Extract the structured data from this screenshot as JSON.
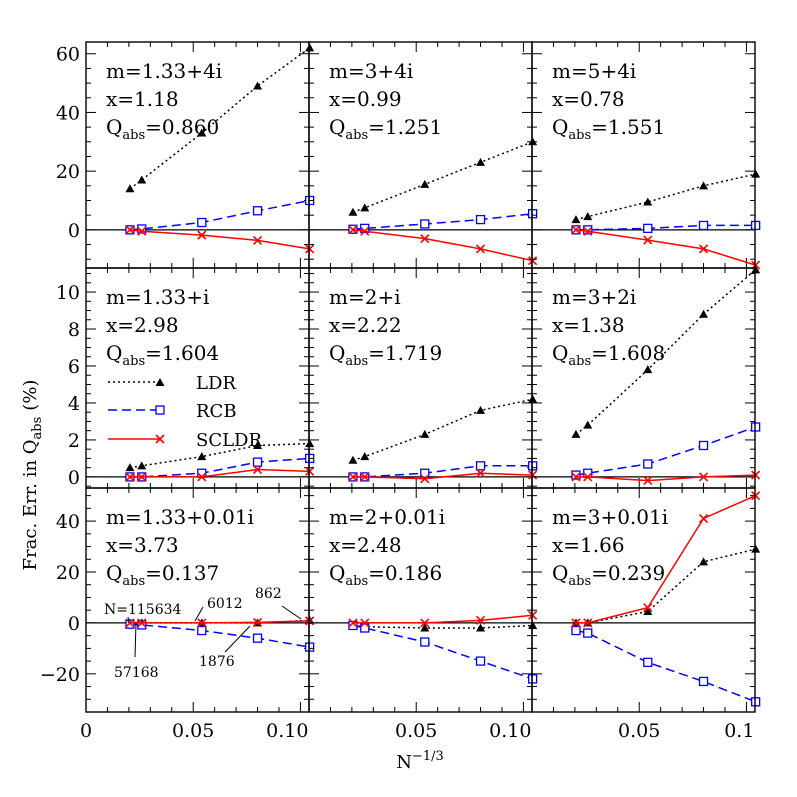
{
  "figure": {
    "ylabel": "Frac. Err. in Q",
    "ylabel_sub": "abs",
    "ylabel_unit": "(%)",
    "xlabel": "N",
    "xlabel_sup": "−1/3"
  },
  "legend": [
    {
      "label": "LDR",
      "color": "#000000"
    },
    {
      "label": "RCB",
      "color": "#0000ff"
    },
    {
      "label": "SCLDR",
      "color": "#ff0000"
    }
  ],
  "annotations": [
    {
      "text": "N=115634"
    },
    {
      "text": "57168"
    },
    {
      "text": "6012"
    },
    {
      "text": "1876"
    },
    {
      "text": "862"
    }
  ],
  "chart_data": [
    {
      "type": "line",
      "row": 0,
      "col": 0,
      "labels": [
        "m=1.33+4i",
        "x=1.18"
      ],
      "qabs_prefix": "Q",
      "qabs_sub": "abs",
      "qabs_value": "=0.860",
      "xlim": [
        0,
        0.104
      ],
      "ylim": [
        -13,
        64
      ],
      "xticks": [
        0,
        0.05,
        0.1
      ],
      "xticklabels": [],
      "yticks": [
        0,
        20,
        40,
        60
      ],
      "yticklabels": [
        "0",
        "20",
        "40",
        "60"
      ],
      "x": [
        0.0205,
        0.026,
        0.054,
        0.08,
        0.1043
      ],
      "series": [
        {
          "name": "LDR",
          "values": [
            14,
            17,
            33,
            49,
            62
          ]
        },
        {
          "name": "RCB",
          "values": [
            0,
            0.3,
            2.5,
            6.5,
            10
          ]
        },
        {
          "name": "SCLDR",
          "values": [
            0,
            -0.5,
            -1.8,
            -3.6,
            -6.5
          ]
        }
      ]
    },
    {
      "type": "line",
      "row": 0,
      "col": 1,
      "labels": [
        "m=3+4i",
        "x=0.99"
      ],
      "qabs_prefix": "Q",
      "qabs_sub": "abs",
      "qabs_value": "=1.251",
      "xlim": [
        0,
        0.104
      ],
      "ylim": [
        -13,
        64
      ],
      "xticks": [
        0,
        0.05,
        0.1
      ],
      "xticklabels": [],
      "yticks": [
        0,
        20,
        40,
        60
      ],
      "yticklabels": [],
      "x": [
        0.0205,
        0.026,
        0.054,
        0.08,
        0.1043
      ],
      "series": [
        {
          "name": "LDR",
          "values": [
            6,
            7.5,
            15.5,
            23,
            30
          ]
        },
        {
          "name": "RCB",
          "values": [
            0.2,
            0.5,
            2,
            3.5,
            5.5
          ]
        },
        {
          "name": "SCLDR",
          "values": [
            0,
            -0.5,
            -3,
            -6.5,
            -10.5
          ]
        }
      ]
    },
    {
      "type": "line",
      "row": 0,
      "col": 2,
      "labels": [
        "m=5+4i",
        "x=0.78"
      ],
      "qabs_prefix": "Q",
      "qabs_sub": "abs",
      "qabs_value": "=1.551",
      "xlim": [
        0,
        0.104
      ],
      "ylim": [
        -13,
        64
      ],
      "xticks": [
        0,
        0.05,
        0.1
      ],
      "xticklabels": [],
      "yticks": [
        0,
        20,
        40,
        60
      ],
      "yticklabels": [],
      "x": [
        0.0205,
        0.026,
        0.054,
        0.08,
        0.1043
      ],
      "series": [
        {
          "name": "LDR",
          "values": [
            3.5,
            4.5,
            9.5,
            15,
            19
          ]
        },
        {
          "name": "RCB",
          "values": [
            0,
            0,
            0.5,
            1.5,
            1.5
          ]
        },
        {
          "name": "SCLDR",
          "values": [
            0,
            -0.5,
            -3.5,
            -6.5,
            -12
          ]
        }
      ]
    },
    {
      "type": "line",
      "row": 1,
      "col": 0,
      "labels": [
        "m=1.33+i",
        "x=2.98"
      ],
      "qabs_prefix": "Q",
      "qabs_sub": "abs",
      "qabs_value": "=1.604",
      "xlim": [
        0,
        0.104
      ],
      "ylim": [
        -0.6,
        11.3
      ],
      "xticks": [
        0,
        0.05,
        0.1
      ],
      "xticklabels": [],
      "yticks": [
        0,
        2,
        4,
        6,
        8,
        10
      ],
      "yticklabels": [
        "0",
        "2",
        "4",
        "6",
        "8",
        "10"
      ],
      "x": [
        0.0205,
        0.026,
        0.054,
        0.08,
        0.1043
      ],
      "series": [
        {
          "name": "LDR",
          "values": [
            0.5,
            0.6,
            1.1,
            1.7,
            1.8
          ]
        },
        {
          "name": "RCB",
          "values": [
            0,
            0,
            0.2,
            0.8,
            1
          ]
        },
        {
          "name": "SCLDR",
          "values": [
            0,
            0,
            0,
            0.4,
            0.3
          ]
        }
      ]
    },
    {
      "type": "line",
      "row": 1,
      "col": 1,
      "labels": [
        "m=2+i",
        "x=2.22"
      ],
      "qabs_prefix": "Q",
      "qabs_sub": "abs",
      "qabs_value": "=1.719",
      "xlim": [
        0,
        0.104
      ],
      "ylim": [
        -0.6,
        11.3
      ],
      "xticks": [
        0,
        0.05,
        0.1
      ],
      "xticklabels": [],
      "yticks": [
        0,
        2,
        4,
        6,
        8,
        10
      ],
      "yticklabels": [],
      "x": [
        0.0205,
        0.026,
        0.054,
        0.08,
        0.1043
      ],
      "series": [
        {
          "name": "LDR",
          "values": [
            0.9,
            1.1,
            2.3,
            3.6,
            4.2
          ]
        },
        {
          "name": "RCB",
          "values": [
            0,
            0,
            0.2,
            0.6,
            0.6
          ]
        },
        {
          "name": "SCLDR",
          "values": [
            0,
            0,
            -0.1,
            0.2,
            0.1
          ]
        }
      ]
    },
    {
      "type": "line",
      "row": 1,
      "col": 2,
      "labels": [
        "m=3+2i",
        "x=1.38"
      ],
      "qabs_prefix": "Q",
      "qabs_sub": "abs",
      "qabs_value": "=1.608",
      "xlim": [
        0,
        0.104
      ],
      "ylim": [
        -0.6,
        11.3
      ],
      "xticks": [
        0,
        0.05,
        0.1
      ],
      "xticklabels": [],
      "yticks": [
        0,
        2,
        4,
        6,
        8,
        10
      ],
      "yticklabels": [],
      "x": [
        0.0205,
        0.026,
        0.054,
        0.08,
        0.1043
      ],
      "series": [
        {
          "name": "LDR",
          "values": [
            2.3,
            2.8,
            5.8,
            8.8,
            11.2
          ]
        },
        {
          "name": "RCB",
          "values": [
            0.1,
            0.2,
            0.7,
            1.7,
            2.7
          ]
        },
        {
          "name": "SCLDR",
          "values": [
            0,
            0,
            -0.2,
            0,
            0.1
          ]
        }
      ]
    },
    {
      "type": "line",
      "row": 2,
      "col": 0,
      "labels": [
        "m=1.33+0.01i",
        "x=3.73"
      ],
      "qabs_prefix": "Q",
      "qabs_sub": "abs",
      "qabs_value": "=0.137",
      "xlim": [
        0,
        0.104
      ],
      "ylim": [
        -35,
        53
      ],
      "xticks": [
        0,
        0.05,
        0.1
      ],
      "xticklabels": [
        "0",
        "0.05",
        "0.10"
      ],
      "yticks": [
        -20,
        0,
        20,
        40
      ],
      "yticklabels": [
        "−20",
        "0",
        "20",
        "40"
      ],
      "x": [
        0.0205,
        0.026,
        0.054,
        0.08,
        0.1043
      ],
      "series": [
        {
          "name": "LDR",
          "values": [
            0,
            0,
            0,
            0,
            1
          ]
        },
        {
          "name": "RCB",
          "values": [
            -0.5,
            -0.8,
            -3,
            -6,
            -9.5
          ]
        },
        {
          "name": "SCLDR",
          "values": [
            0,
            0,
            0,
            0.2,
            0.8
          ]
        }
      ]
    },
    {
      "type": "line",
      "row": 2,
      "col": 1,
      "labels": [
        "m=2+0.01i",
        "x=2.48"
      ],
      "qabs_prefix": "Q",
      "qabs_sub": "abs",
      "qabs_value": "=0.186",
      "xlim": [
        0,
        0.104
      ],
      "ylim": [
        -35,
        53
      ],
      "xticks": [
        0,
        0.05,
        0.1
      ],
      "xticklabels": [
        "0.05",
        "0.10"
      ],
      "yticks": [
        -20,
        0,
        20,
        40
      ],
      "yticklabels": [],
      "x": [
        0.0205,
        0.026,
        0.054,
        0.08,
        0.1043
      ],
      "series": [
        {
          "name": "LDR",
          "values": [
            -1,
            -1.5,
            -2,
            -2,
            -1
          ]
        },
        {
          "name": "RCB",
          "values": [
            -1,
            -2,
            -7.5,
            -15,
            -22
          ]
        },
        {
          "name": "SCLDR",
          "values": [
            0,
            0,
            0,
            1,
            3
          ]
        }
      ]
    },
    {
      "type": "line",
      "row": 2,
      "col": 2,
      "labels": [
        "m=3+0.01i",
        "x=1.66"
      ],
      "qabs_prefix": "Q",
      "qabs_sub": "abs",
      "qabs_value": "=0.239",
      "xlim": [
        0,
        0.104
      ],
      "ylim": [
        -35,
        53
      ],
      "xticks": [
        0,
        0.05,
        0.1
      ],
      "xticklabels": [
        "0.05",
        "0.1"
      ],
      "yticks": [
        -20,
        0,
        20,
        40
      ],
      "yticklabels": [],
      "x": [
        0.0205,
        0.026,
        0.054,
        0.08,
        0.1043
      ],
      "series": [
        {
          "name": "LDR",
          "values": [
            0,
            0,
            4.5,
            24,
            29
          ]
        },
        {
          "name": "RCB",
          "values": [
            -3,
            -4,
            -15.5,
            -23,
            -31
          ]
        },
        {
          "name": "SCLDR",
          "values": [
            0,
            0,
            6,
            41,
            50
          ]
        }
      ]
    }
  ]
}
